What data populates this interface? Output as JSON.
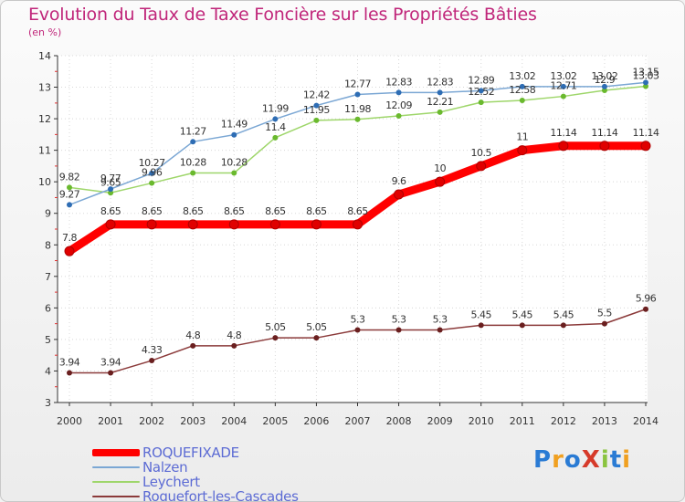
{
  "header": {
    "title": "Evolution du Taux de Taxe Foncière sur les Propriétés Bâties",
    "unit": "(en %)"
  },
  "brand": {
    "text": "ProXiti"
  },
  "colors": {
    "title": "#c0267a",
    "legend_text": "#5c6bd4"
  },
  "chart_data": {
    "type": "line",
    "title": "Evolution du Taux de Taxe Foncière sur les Propriétés Bâties",
    "ylabel": "(en %)",
    "xlabel": "",
    "x": [
      "2000",
      "2001",
      "2002",
      "2003",
      "2004",
      "2005",
      "2006",
      "2007",
      "2008",
      "2009",
      "2010",
      "2011",
      "2012",
      "2013",
      "2014"
    ],
    "ylim": [
      3,
      14
    ],
    "yticks": [
      "3",
      "4",
      "5",
      "6",
      "7",
      "8",
      "9",
      "10",
      "11",
      "12",
      "13",
      "14"
    ],
    "legend_position": "bottom-left",
    "series": [
      {
        "name": "ROQUEFIXADE",
        "color": "#ff0000",
        "marker_color": "#e00000",
        "bold": true,
        "values": [
          7.8,
          8.65,
          8.65,
          8.65,
          8.65,
          8.65,
          8.65,
          8.65,
          9.6,
          10,
          10.5,
          11,
          11.14,
          11.14,
          11.14
        ],
        "labels": [
          "7.8",
          "8.65",
          "8.65",
          "8.65",
          "8.65",
          "8.65",
          "8.65",
          "8.65",
          "9.6",
          "10",
          "10.5",
          "11",
          "11.14",
          "11.14",
          "11.14"
        ]
      },
      {
        "name": "Nalzen",
        "color": "#7ba7d4",
        "marker_color": "#2e6db4",
        "bold": false,
        "values": [
          9.27,
          9.77,
          10.27,
          11.27,
          11.49,
          11.99,
          12.42,
          12.77,
          12.83,
          12.83,
          12.89,
          13.02,
          13.02,
          13.02,
          13.15
        ],
        "labels": [
          "9.27",
          "9.77",
          "10.27",
          "11.27",
          "11.49",
          "11.99",
          "12.42",
          "12.77",
          "12.83",
          "12.83",
          "12.89",
          "13.02",
          "13.02",
          "13.02",
          "13.15"
        ]
      },
      {
        "name": "Leychert",
        "color": "#9ed66a",
        "marker_color": "#6ab92e",
        "bold": false,
        "values": [
          9.82,
          9.65,
          9.96,
          10.28,
          10.28,
          11.4,
          11.95,
          11.98,
          12.09,
          12.21,
          12.52,
          12.58,
          12.71,
          12.9,
          13.03
        ],
        "labels": [
          "9.82",
          "9.65",
          "9.96",
          "10.28",
          "10.28",
          "11.4",
          "11.95",
          "11.98",
          "12.09",
          "12.21",
          "12.52",
          "12.58",
          "12.71",
          "12.9",
          "13.03"
        ]
      },
      {
        "name": "Roquefort-les-Cascades",
        "color": "#8b3a3a",
        "marker_color": "#6a1f1f",
        "bold": false,
        "values": [
          3.94,
          3.94,
          4.33,
          4.8,
          4.8,
          5.05,
          5.05,
          5.3,
          5.3,
          5.3,
          5.45,
          5.45,
          5.45,
          5.5,
          5.96
        ],
        "labels": [
          "3.94",
          "3.94",
          "4.33",
          "4.8",
          "4.8",
          "5.05",
          "5.05",
          "5.3",
          "5.3",
          "5.3",
          "5.45",
          "5.45",
          "5.45",
          "5.5",
          "5.96"
        ]
      }
    ]
  }
}
